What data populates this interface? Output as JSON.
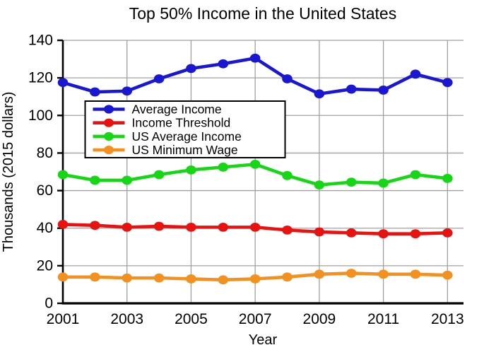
{
  "chart_data": {
    "type": "line",
    "title": "Top 50% Income in the United States",
    "xlabel": "Year",
    "ylabel": "Thousands (2015 dollars)",
    "x": [
      2001,
      2002,
      2003,
      2004,
      2005,
      2006,
      2007,
      2008,
      2009,
      2010,
      2011,
      2012,
      2013
    ],
    "x_ticks": [
      2001,
      2003,
      2005,
      2007,
      2009,
      2011,
      2013
    ],
    "y_ticks": [
      0,
      20,
      40,
      60,
      80,
      100,
      120,
      140
    ],
    "xlim": [
      2001,
      2013.5
    ],
    "ylim": [
      0,
      140
    ],
    "grid": true,
    "legend_position": "upper-left-inside",
    "series": [
      {
        "name": "Average Income",
        "color": "#1a17d3",
        "values": [
          117.5,
          112.5,
          113,
          119.5,
          125,
          127.5,
          130.5,
          119.5,
          111.5,
          114,
          113.5,
          122,
          117.5
        ]
      },
      {
        "name": "Income Threshold",
        "color": "#e81210",
        "values": [
          42,
          41.5,
          40.5,
          41,
          40.5,
          40.5,
          40.5,
          39,
          38,
          37.5,
          37,
          37,
          37.5
        ]
      },
      {
        "name": "US Average Income",
        "color": "#16d616",
        "values": [
          68.5,
          65.5,
          65.5,
          68.5,
          71,
          72.5,
          74,
          68,
          63,
          64.5,
          64,
          68.5,
          66.5
        ]
      },
      {
        "name": "US Minimum Wage",
        "color": "#f29120",
        "values": [
          14,
          14,
          13.5,
          13.5,
          13,
          12.5,
          13,
          14,
          15.5,
          16,
          15.5,
          15.5,
          15
        ]
      }
    ],
    "colors": {
      "grid": "#a0a0a0",
      "axis": "#000000",
      "background": "#ffffff",
      "legend_border": "#000000",
      "legend_background": "#ffffff"
    }
  }
}
